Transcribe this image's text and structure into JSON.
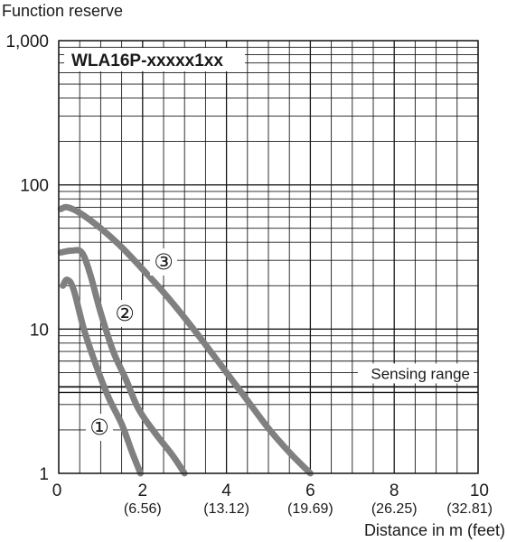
{
  "chart_data": {
    "type": "line",
    "title": "WLA16P-xxxxx1xx",
    "ylabel": "Function reserve",
    "xlabel": "Distance in m (feet)",
    "y_scale": "log",
    "ylim": [
      1,
      1000
    ],
    "xlim": [
      0,
      10
    ],
    "grid": true,
    "y_ticks": [
      {
        "value": 1,
        "label": "1"
      },
      {
        "value": 10,
        "label": "10"
      },
      {
        "value": 100,
        "label": "100"
      },
      {
        "value": 1000,
        "label": "1,000"
      }
    ],
    "x_ticks": [
      {
        "value": 0,
        "label": "0",
        "sublabel": ""
      },
      {
        "value": 2,
        "label": "2",
        "sublabel": "(6.56)"
      },
      {
        "value": 4,
        "label": "4",
        "sublabel": "(13.12)"
      },
      {
        "value": 6,
        "label": "6",
        "sublabel": "(19.69)"
      },
      {
        "value": 8,
        "label": "8",
        "sublabel": "(26.25)"
      },
      {
        "value": 10,
        "label": "10",
        "sublabel": "(32.81)"
      }
    ],
    "threshold": {
      "value": 3.8,
      "label": "Sensing range"
    },
    "series": [
      {
        "name": "①",
        "x": [
          0.1,
          0.2,
          0.35,
          0.6,
          0.9,
          1.2,
          1.5,
          1.75,
          1.95
        ],
        "y": [
          20,
          22,
          19,
          10,
          5.5,
          3.3,
          2.2,
          1.4,
          1
        ]
      },
      {
        "name": "②",
        "x": [
          0.05,
          0.3,
          0.55,
          0.75,
          1.0,
          1.3,
          1.6,
          1.9,
          2.3,
          2.7,
          3.0
        ],
        "y": [
          34,
          35,
          34,
          24,
          13,
          7,
          4.5,
          2.8,
          1.9,
          1.35,
          1
        ]
      },
      {
        "name": "③",
        "x": [
          0.05,
          0.2,
          0.5,
          1.0,
          1.5,
          2.0,
          2.5,
          3.0,
          3.5,
          4.0,
          4.5,
          5.0,
          5.5,
          6.0
        ],
        "y": [
          68,
          70,
          64,
          50,
          37,
          26,
          18,
          12,
          7.8,
          5,
          3.2,
          2.05,
          1.4,
          1
        ]
      }
    ],
    "colors": {
      "curve": "#808080",
      "grid": "#1a1a1a",
      "text": "#1a1a1a"
    }
  }
}
